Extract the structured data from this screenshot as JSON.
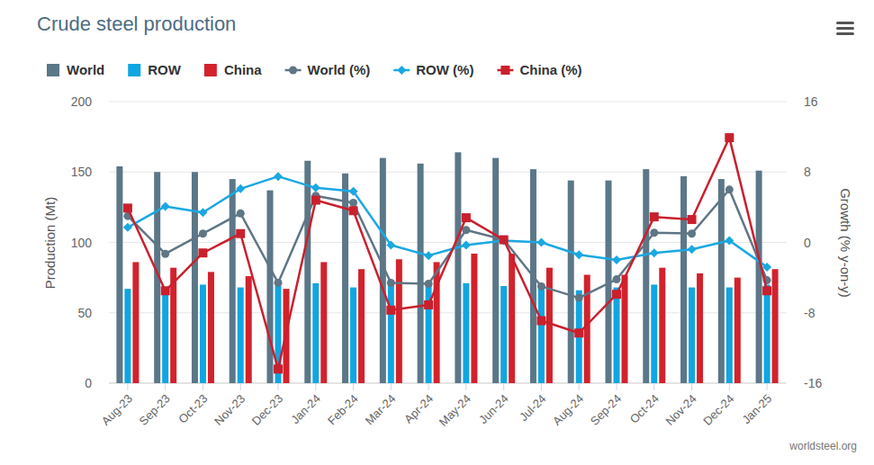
{
  "chart_data": {
    "type": "bar",
    "title": "Crude steel production",
    "source": "worldsteel.org",
    "y_label": "Production (Mt)",
    "y2_label": "Growth (% y-on-y)",
    "categories": [
      "Aug-23",
      "Sep-23",
      "Oct-23",
      "Nov-23",
      "Dec-23",
      "Jan-24",
      "Feb-24",
      "Mar-24",
      "Apr-24",
      "May-24",
      "Jun-24",
      "Jul-24",
      "Aug-24",
      "Sep-24",
      "Oct-24",
      "Nov-24",
      "Dec-24",
      "Jan-25"
    ],
    "ylim": [
      0,
      200
    ],
    "yticks": [
      0,
      50,
      100,
      150,
      200
    ],
    "y2lim": [
      -16,
      16
    ],
    "y2ticks": [
      -16,
      -8,
      0,
      8,
      16
    ],
    "grid": true,
    "legend": "top",
    "series": [
      {
        "name": "World",
        "type": "bar",
        "color": "#5b7788",
        "values": [
          154,
          150,
          150,
          145,
          137,
          158,
          149,
          160,
          156,
          164,
          160,
          152,
          144,
          144,
          152,
          147,
          145,
          151
        ]
      },
      {
        "name": "ROW",
        "type": "bar",
        "color": "#10a6e2",
        "values": [
          67,
          68,
          70,
          68,
          69,
          71,
          68,
          72,
          70,
          71,
          69,
          69,
          66,
          68,
          70,
          68,
          68,
          70
        ]
      },
      {
        "name": "China",
        "type": "bar",
        "color": "#d3222c",
        "values": [
          86,
          82,
          79,
          76,
          67,
          86,
          81,
          88,
          86,
          92,
          92,
          82,
          77,
          77,
          82,
          78,
          75,
          81
        ]
      },
      {
        "name": "World (%)",
        "type": "line",
        "axis": "y2",
        "color": "#5f7685",
        "marker": "circle",
        "values": [
          3.0,
          -1.3,
          1.0,
          3.3,
          -4.6,
          5.3,
          4.5,
          -4.6,
          -4.7,
          1.4,
          0.3,
          -5.0,
          -6.3,
          -4.2,
          1.1,
          1.0,
          6.0,
          -4.3
        ]
      },
      {
        "name": "ROW (%)",
        "type": "line",
        "axis": "y2",
        "color": "#1aa8e2",
        "marker": "diamond",
        "values": [
          1.7,
          4.1,
          3.4,
          6.1,
          7.5,
          6.2,
          5.8,
          -0.3,
          -1.5,
          -0.3,
          0.2,
          0.0,
          -1.4,
          -2.0,
          -1.2,
          -0.8,
          0.2,
          -2.8
        ]
      },
      {
        "name": "China (%)",
        "type": "line",
        "axis": "y2",
        "color": "#c9202e",
        "marker": "square",
        "values": [
          3.9,
          -5.5,
          -1.2,
          1.0,
          -14.4,
          4.8,
          3.6,
          -7.7,
          -7.1,
          2.8,
          0.3,
          -8.9,
          -10.3,
          -5.9,
          2.9,
          2.6,
          11.9,
          -5.5
        ]
      }
    ]
  }
}
